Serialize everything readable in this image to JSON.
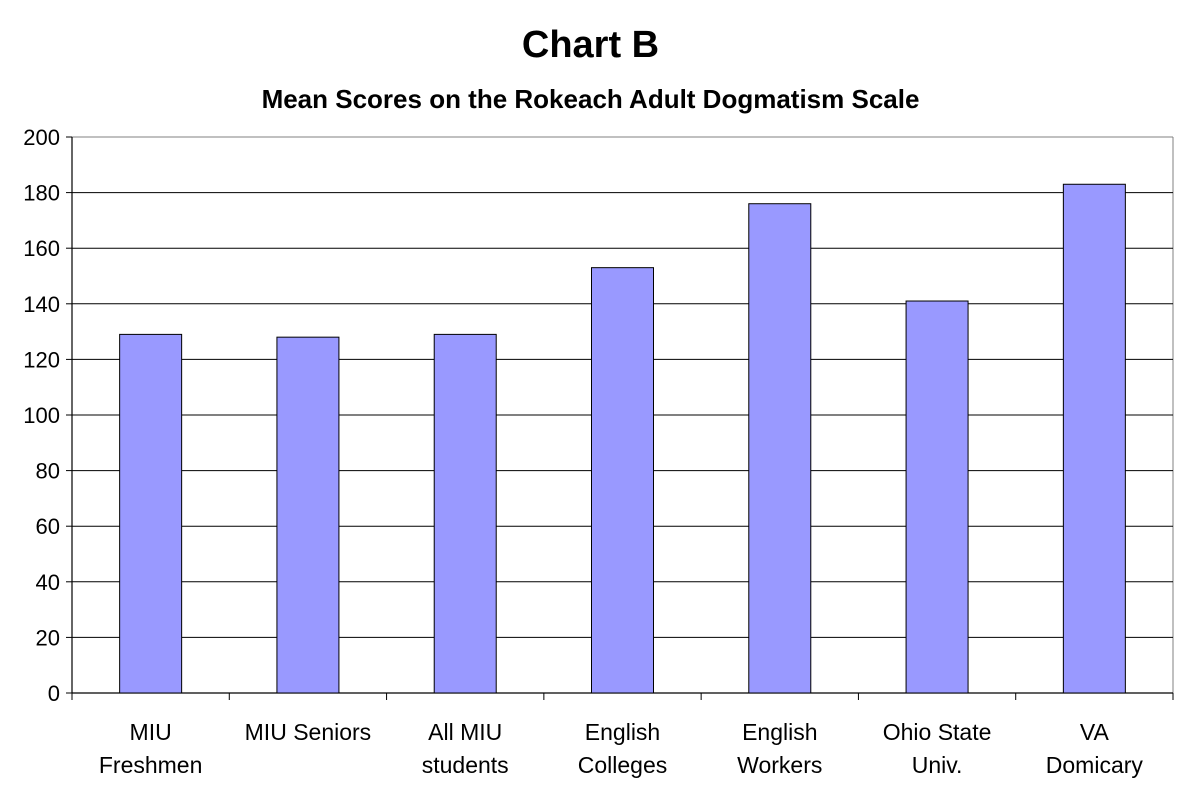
{
  "chart_data": {
    "type": "bar",
    "title": "Chart B",
    "subtitle": "Mean Scores on the Rokeach Adult Dogmatism Scale",
    "xlabel": "",
    "ylabel": "",
    "ylim": [
      0,
      200
    ],
    "yticks": [
      0,
      20,
      40,
      60,
      80,
      100,
      120,
      140,
      160,
      180,
      200
    ],
    "grid": true,
    "categories": [
      [
        "MIU",
        "Freshmen"
      ],
      [
        "MIU Seniors"
      ],
      [
        "All MIU",
        "students"
      ],
      [
        "English",
        "Colleges"
      ],
      [
        "English",
        "Workers"
      ],
      [
        "Ohio State",
        "Univ."
      ],
      [
        "VA",
        "Domicary"
      ]
    ],
    "values": [
      129,
      128,
      129,
      153,
      176,
      141,
      183
    ],
    "colors": {
      "bar": "#9999ff",
      "bar_edge": "#000000",
      "grid": "#000000"
    }
  }
}
